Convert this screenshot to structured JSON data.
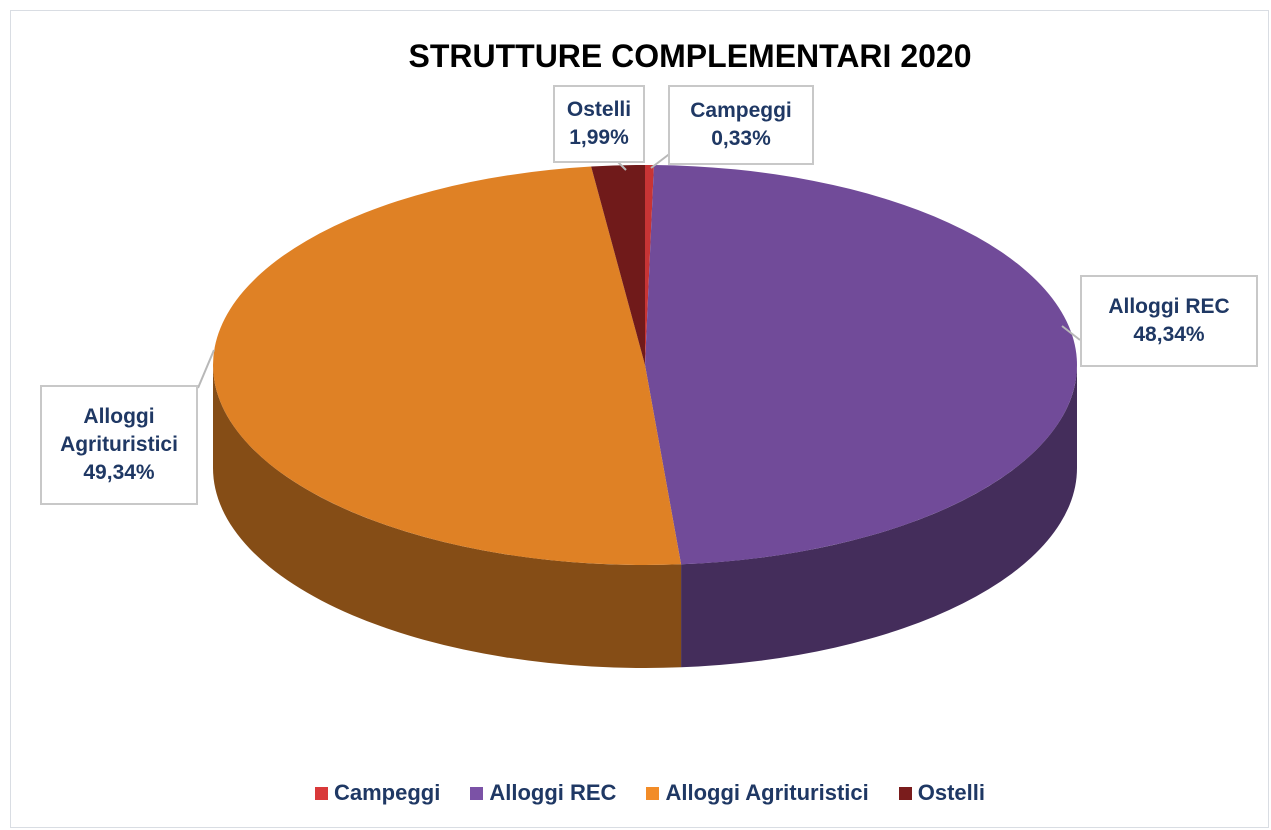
{
  "chart_data": {
    "type": "pie3d",
    "title": "STRUTTURE COMPLEMENTARI 2020",
    "categories": [
      "Campeggi",
      "Alloggi REC",
      "Alloggi Agrituristici",
      "Ostelli"
    ],
    "values": [
      0.33,
      48.34,
      49.34,
      1.99
    ],
    "value_labels": [
      "0,33%",
      "48,34%",
      "49,34%",
      "1,99%"
    ],
    "colors": [
      "#d9393a",
      "#7b52a6",
      "#f28c28",
      "#7a1c1c"
    ],
    "legend": "bottom"
  }
}
